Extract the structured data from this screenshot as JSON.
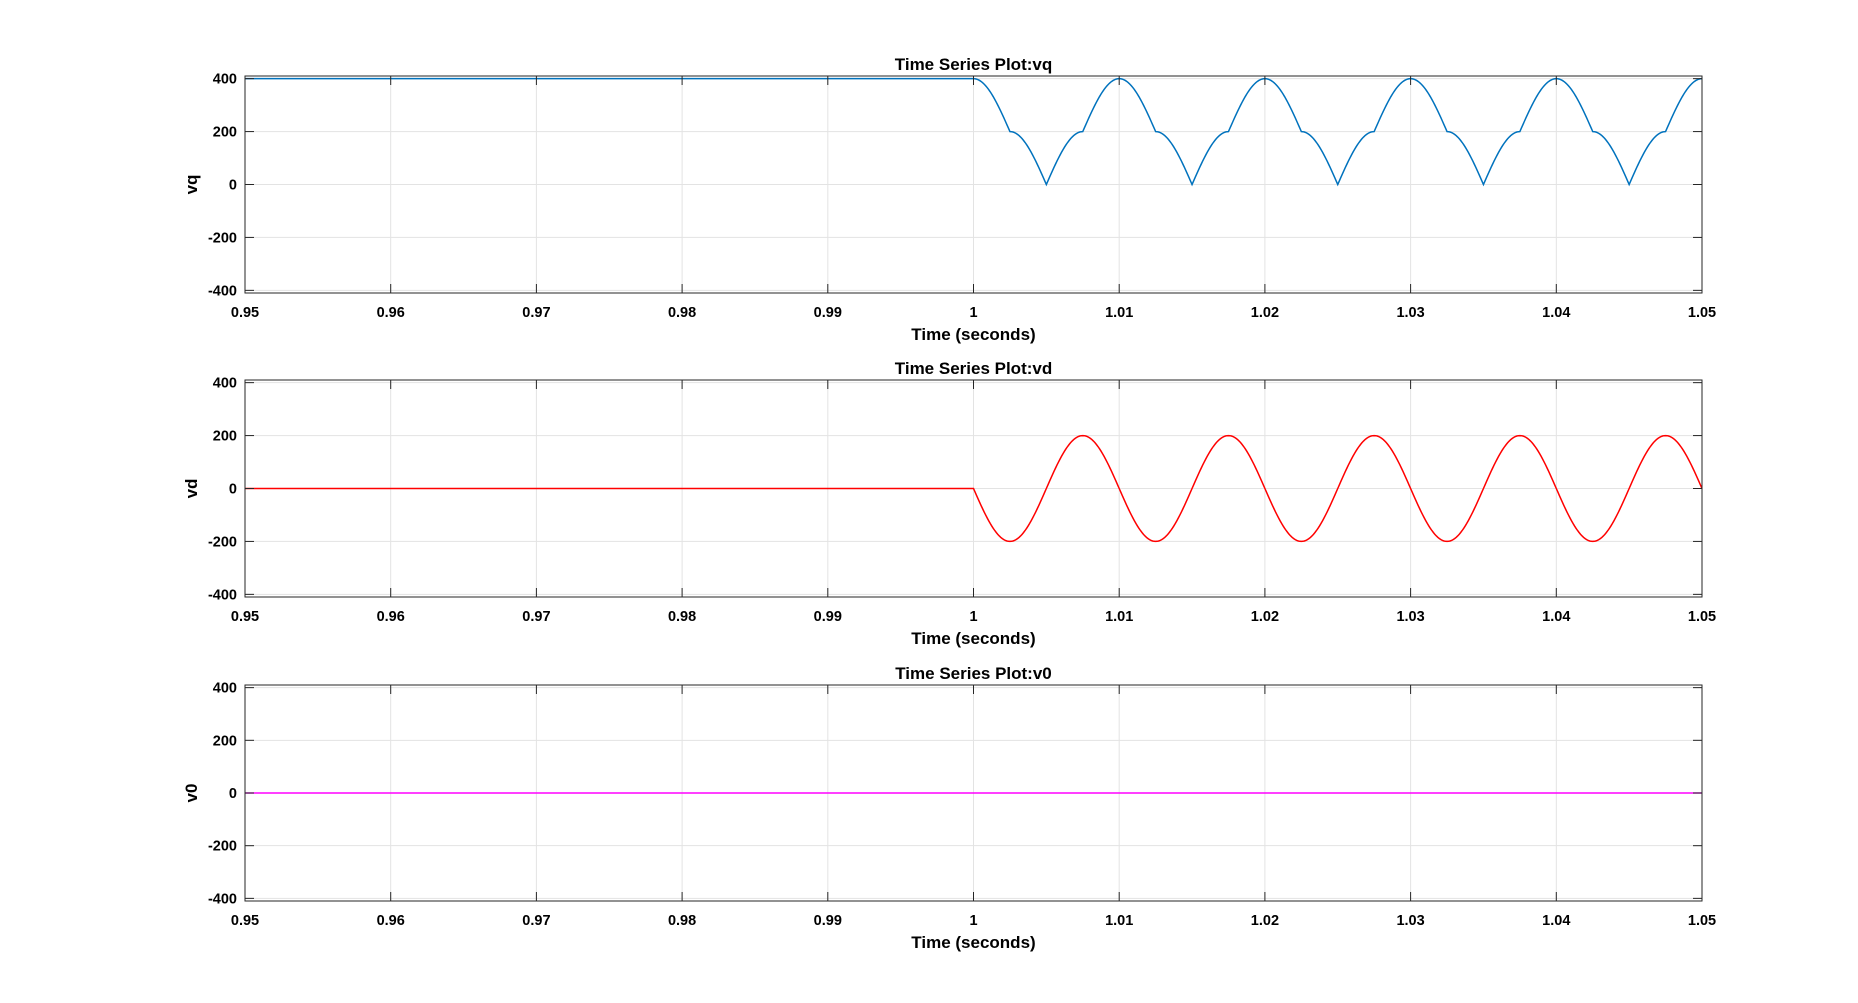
{
  "chart_data": [
    {
      "type": "line",
      "title": "Time Series Plot:vq",
      "xlabel": "Time (seconds)",
      "ylabel": "vq",
      "xlim": [
        0.95,
        1.05
      ],
      "ylim": [
        -410,
        410
      ],
      "xticks": [
        0.95,
        0.96,
        0.97,
        0.98,
        0.99,
        1,
        1.01,
        1.02,
        1.03,
        1.04,
        1.05
      ],
      "xtick_labels": [
        "0.95",
        "0.96",
        "0.97",
        "0.98",
        "0.99",
        "1",
        "1.01",
        "1.02",
        "1.03",
        "1.04",
        "1.05"
      ],
      "yticks": [
        -400,
        -200,
        0,
        200,
        400
      ],
      "ytick_labels": [
        "-400",
        "-200",
        "0",
        "200",
        "400"
      ],
      "grid": true,
      "color": "#0072BD",
      "series": [
        {
          "x": [
            0.95,
            0.9975,
            1.0,
            1.0025,
            1.005,
            1.0075,
            1.01,
            1.0125,
            1.015,
            1.0175,
            1.02,
            1.0225,
            1.025,
            1.0275,
            1.03,
            1.0325,
            1.035,
            1.0375,
            1.04,
            1.0425,
            1.045,
            1.0475,
            1.05
          ],
          "values": [
            400,
            400,
            400,
            200,
            0,
            200,
            400,
            200,
            0,
            200,
            400,
            200,
            0,
            200,
            400,
            200,
            0,
            200,
            400,
            200,
            0,
            200,
            400
          ]
        }
      ]
    },
    {
      "type": "line",
      "title": "Time Series Plot:vd",
      "xlabel": "Time (seconds)",
      "ylabel": "vd",
      "xlim": [
        0.95,
        1.05
      ],
      "ylim": [
        -410,
        410
      ],
      "xticks": [
        0.95,
        0.96,
        0.97,
        0.98,
        0.99,
        1,
        1.01,
        1.02,
        1.03,
        1.04,
        1.05
      ],
      "xtick_labels": [
        "0.95",
        "0.96",
        "0.97",
        "0.98",
        "0.99",
        "1",
        "1.01",
        "1.02",
        "1.03",
        "1.04",
        "1.05"
      ],
      "yticks": [
        -400,
        -200,
        0,
        200,
        400
      ],
      "ytick_labels": [
        "-400",
        "-200",
        "0",
        "200",
        "400"
      ],
      "grid": true,
      "color": "#FF0000",
      "series": [
        {
          "x": [
            0.95,
            1.0,
            1.0025,
            1.005,
            1.0075,
            1.01,
            1.0125,
            1.015,
            1.0175,
            1.02,
            1.0225,
            1.025,
            1.0275,
            1.03,
            1.0325,
            1.035,
            1.0375,
            1.04,
            1.0425,
            1.045,
            1.0475,
            1.05
          ],
          "values": [
            0,
            0,
            -200,
            0,
            200,
            0,
            -200,
            0,
            200,
            0,
            -200,
            0,
            200,
            0,
            -200,
            0,
            200,
            0,
            -200,
            0,
            200,
            0
          ]
        }
      ]
    },
    {
      "type": "line",
      "title": "Time Series Plot:v0",
      "xlabel": "Time (seconds)",
      "ylabel": "v0",
      "xlim": [
        0.95,
        1.05
      ],
      "ylim": [
        -410,
        410
      ],
      "xticks": [
        0.95,
        0.96,
        0.97,
        0.98,
        0.99,
        1,
        1.01,
        1.02,
        1.03,
        1.04,
        1.05
      ],
      "xtick_labels": [
        "0.95",
        "0.96",
        "0.97",
        "0.98",
        "0.99",
        "1",
        "1.01",
        "1.02",
        "1.03",
        "1.04",
        "1.05"
      ],
      "yticks": [
        -400,
        -200,
        0,
        200,
        400
      ],
      "ytick_labels": [
        "-400",
        "-200",
        "0",
        "200",
        "400"
      ],
      "grid": true,
      "color": "#FF00FF",
      "series": [
        {
          "x": [
            0.95,
            1.05
          ],
          "values": [
            0,
            0
          ]
        }
      ]
    }
  ]
}
